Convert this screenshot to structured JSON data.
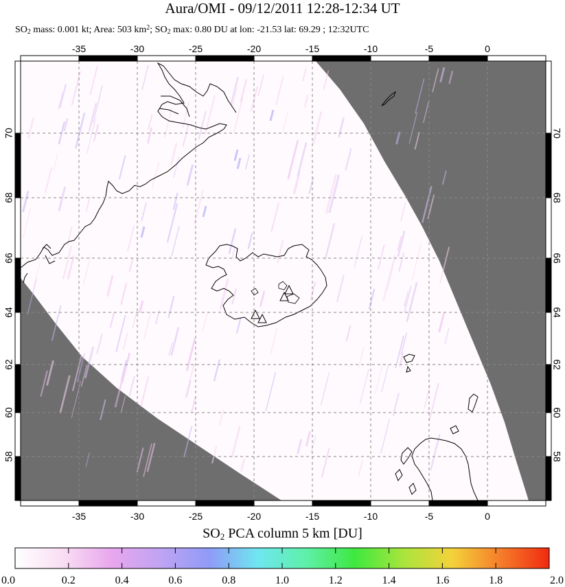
{
  "header": {
    "title": "Aura/OMI - 09/12/2011 12:28-12:34 UT",
    "subtitle": {
      "p1": "SO",
      "s1": "2",
      "p2": " mass: 0.001 kt; Area: 503 km",
      "sup": "2",
      "p3": "; SO",
      "s2": "2",
      "p4": " max: 0.80 DU at lon: -21.53 lat: 69.29 ; 12:32UTC"
    }
  },
  "map": {
    "lon_range": [
      -40,
      5.5
    ],
    "lat_range": [
      56,
      70.8
    ],
    "lon_ticks": [
      "-35",
      "-30",
      "-25",
      "-20",
      "-15",
      "-10",
      "-5",
      "0"
    ],
    "lat_ticks": [
      "70",
      "68",
      "66",
      "64",
      "62",
      "60",
      "58"
    ],
    "colors": {
      "no_data": "#6e6e6e",
      "data_background": "#fffafd",
      "coastline": "#000000",
      "gridline": "#888888"
    },
    "volcano_markers": [
      {
        "lon": -17.3,
        "lat": 64.6
      },
      {
        "lon": -17.6,
        "lat": 64.4
      },
      {
        "lon": -19.6,
        "lat": 63.6
      },
      {
        "lon": -19.0,
        "lat": 63.9
      }
    ]
  },
  "colorbar": {
    "title_p1": "SO",
    "title_sub": "2",
    "title_p2": " PCA column 5 km [DU]",
    "labels": [
      "0.0",
      "0.2",
      "0.4",
      "0.6",
      "0.8",
      "1.0",
      "1.2",
      "1.4",
      "1.6",
      "1.8",
      "2.0"
    ],
    "stops": [
      "#ffffff",
      "#f9ddf3",
      "#e8a6ee",
      "#bfa4f3",
      "#8f9bf7",
      "#6fe6f0",
      "#5ef0a8",
      "#3fe83f",
      "#a9e53c",
      "#f4d23a",
      "#f57d2a",
      "#f02a10"
    ]
  }
}
